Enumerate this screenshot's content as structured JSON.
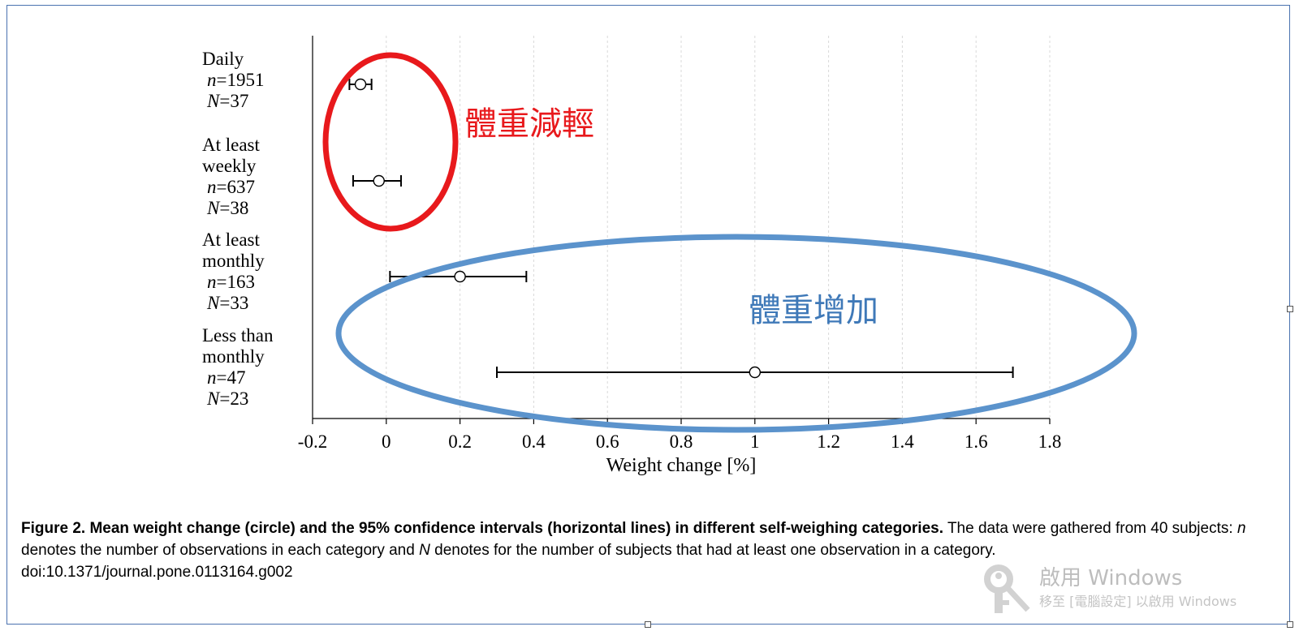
{
  "chart_data": {
    "type": "scatter",
    "title": "",
    "xlabel": "Weight change [%]",
    "ylabel": "",
    "xlim": [
      -0.2,
      1.8
    ],
    "xticks": [
      -0.2,
      0,
      0.2,
      0.4,
      0.6,
      0.8,
      1,
      1.2,
      1.4,
      1.6,
      1.8
    ],
    "xtick_labels": [
      "-0.2",
      "0",
      "0.2",
      "0.4",
      "0.6",
      "0.8",
      "1",
      "1.2",
      "1.4",
      "1.6",
      "1.8"
    ],
    "grid": "vertical dashed",
    "categories": [
      {
        "lines": [
          "Daily"
        ],
        "n_label": "=1951",
        "N_label": "=37",
        "mean": -0.07,
        "ci": [
          -0.1,
          -0.04
        ]
      },
      {
        "lines": [
          "At least",
          "weekly"
        ],
        "n_label": "=637",
        "N_label": "=38",
        "mean": -0.02,
        "ci": [
          -0.09,
          0.04
        ]
      },
      {
        "lines": [
          "At least",
          "monthly"
        ],
        "n_label": "=163",
        "N_label": "=33",
        "mean": 0.2,
        "ci": [
          0.01,
          0.38
        ]
      },
      {
        "lines": [
          "Less than",
          "monthly"
        ],
        "n_label": "=47",
        "N_label": "=23",
        "mean": 1.0,
        "ci": [
          0.3,
          1.7
        ]
      }
    ],
    "n_symbol": "n",
    "N_symbol": "N",
    "annotations": [
      {
        "text": "體重減輕",
        "color": "#e8191c"
      },
      {
        "text": "體重增加",
        "color": "#3f79b8"
      }
    ]
  },
  "caption": {
    "bold": "Figure 2. Mean weight change (circle) and the 95% confidence intervals (horizontal lines) in different self-weighing categories.",
    "part1": " The data were gathered from 40 subjects: ",
    "n_symbol": "n",
    "part2": " denotes the number of observations in each category and ",
    "N_symbol": "N",
    "part3": " denotes for the number of subjects that had at least one observation in a category.",
    "doi": "doi:10.1371/journal.pone.0113164.g002"
  },
  "watermark": {
    "title": "啟用 Windows",
    "subtitle": "移至 [電腦設定] 以啟用 Windows"
  },
  "colors": {
    "loss_ellipse": "#e8191c",
    "gain_ellipse": "#5b93cc",
    "frame": "#4a72b0"
  }
}
